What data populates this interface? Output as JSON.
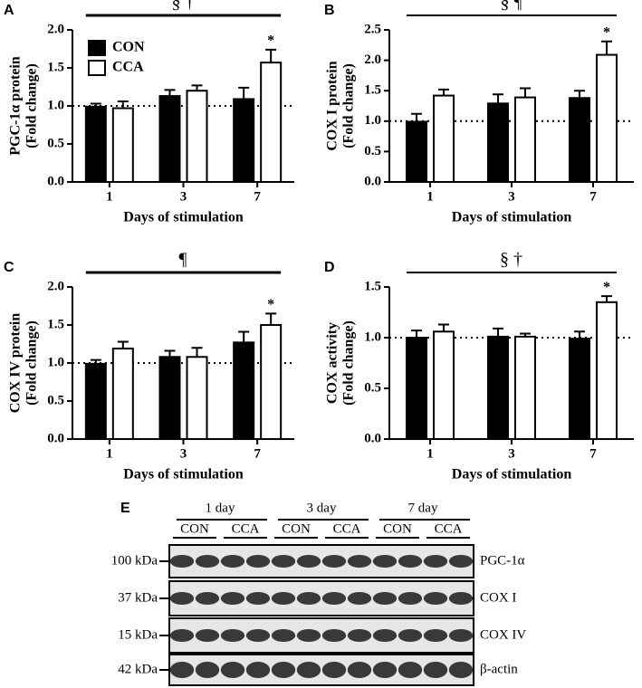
{
  "chart_data": [
    {
      "type": "bar",
      "panel": "A",
      "ylabel": [
        "PGC-1α protein",
        "(Fold change)"
      ],
      "xlabel": "Days of stimulation",
      "categories": [
        "1",
        "3",
        "7"
      ],
      "legend": true,
      "series": [
        {
          "name": "CON",
          "color": "#000000",
          "values": [
            0.99,
            1.13,
            1.09
          ],
          "errors": [
            0.04,
            0.08,
            0.15
          ]
        },
        {
          "name": "CCA",
          "color": "#ffffff",
          "values": [
            0.97,
            1.2,
            1.57
          ],
          "errors": [
            0.09,
            0.07,
            0.17
          ]
        }
      ],
      "ylim": [
        0,
        2
      ],
      "yticks": [
        {
          "value": 0,
          "label": "0.0"
        },
        {
          "value": 0.5,
          "label": "0.5"
        },
        {
          "value": 1,
          "label": "1.0"
        },
        {
          "value": 1.5,
          "label": "1.5"
        },
        {
          "value": 2,
          "label": "2.0"
        }
      ],
      "ref_line": 1,
      "significance": "§ †",
      "star": "*"
    },
    {
      "type": "bar",
      "panel": "B",
      "ylabel": [
        "COX I protein",
        "(Fold change)"
      ],
      "xlabel": "Days of stimulation",
      "categories": [
        "1",
        "3",
        "7"
      ],
      "series": [
        {
          "color": "#000000",
          "values": [
            0.99,
            1.29,
            1.38
          ],
          "errors": [
            0.13,
            0.15,
            0.12
          ]
        },
        {
          "color": "#ffffff",
          "values": [
            1.42,
            1.39,
            2.09
          ],
          "errors": [
            0.1,
            0.15,
            0.22
          ]
        }
      ],
      "ylim": [
        0,
        2.5
      ],
      "yticks": [
        {
          "value": 0,
          "label": "0.0"
        },
        {
          "value": 0.5,
          "label": "0.5"
        },
        {
          "value": 1,
          "label": "1.0"
        },
        {
          "value": 1.5,
          "label": "1.5"
        },
        {
          "value": 2,
          "label": "2.0"
        },
        {
          "value": 2.5,
          "label": "2.5"
        }
      ],
      "ref_line": 1,
      "significance": "§ ¶",
      "star": "*"
    },
    {
      "type": "bar",
      "panel": "C",
      "ylabel": [
        "COX IV protein",
        "(Fold change)"
      ],
      "xlabel": "Days of stimulation",
      "categories": [
        "1",
        "3",
        "7"
      ],
      "series": [
        {
          "color": "#000000",
          "values": [
            0.99,
            1.08,
            1.27
          ],
          "errors": [
            0.05,
            0.08,
            0.14
          ]
        },
        {
          "color": "#ffffff",
          "values": [
            1.19,
            1.08,
            1.5
          ],
          "errors": [
            0.09,
            0.12,
            0.15
          ]
        }
      ],
      "ylim": [
        0,
        2
      ],
      "yticks": [
        {
          "value": 0,
          "label": "0.0"
        },
        {
          "value": 0.5,
          "label": "0.5"
        },
        {
          "value": 1,
          "label": "1.0"
        },
        {
          "value": 1.5,
          "label": "1.5"
        },
        {
          "value": 2,
          "label": "2.0"
        }
      ],
      "ref_line": 1,
      "significance": "¶",
      "star": "*"
    },
    {
      "type": "bar",
      "panel": "D",
      "ylabel": [
        "COX activity",
        "(Fold change)"
      ],
      "xlabel": "Days of stimulation",
      "categories": [
        "1",
        "3",
        "7"
      ],
      "series": [
        {
          "color": "#000000",
          "values": [
            1.0,
            1.01,
            0.99
          ],
          "errors": [
            0.07,
            0.08,
            0.07
          ]
        },
        {
          "color": "#ffffff",
          "values": [
            1.06,
            1.01,
            1.35
          ],
          "errors": [
            0.07,
            0.03,
            0.06
          ]
        }
      ],
      "ylim": [
        0,
        1.5
      ],
      "yticks": [
        {
          "value": 0,
          "label": "0.0"
        },
        {
          "value": 0.5,
          "label": "0.5"
        },
        {
          "value": 1,
          "label": "1.0"
        },
        {
          "value": 1.5,
          "label": "1.5"
        }
      ],
      "ref_line": 1,
      "significance": "§ †",
      "star": "*"
    }
  ],
  "blot": {
    "panel": "E",
    "days": [
      "1 day",
      "3 day",
      "7 day"
    ],
    "groups": [
      "CON",
      "CCA",
      "CON",
      "CCA",
      "CON",
      "CCA"
    ],
    "rows": [
      {
        "marker": "100 kDa",
        "protein": "PGC-1α"
      },
      {
        "marker": "37 kDa",
        "protein": "COX I"
      },
      {
        "marker": "15 kDa",
        "protein": "COX IV"
      },
      {
        "marker": "42 kDa",
        "protein": "β-actin"
      }
    ]
  }
}
